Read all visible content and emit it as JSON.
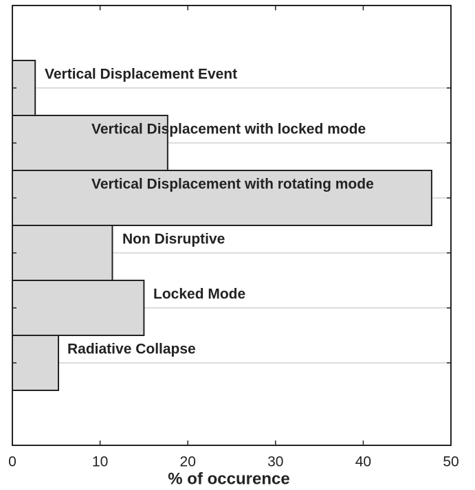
{
  "chart_data": {
    "type": "bar",
    "orientation": "horizontal",
    "categories": [
      "Vertical Displacement Event",
      "Vertical Displacement with locked mode",
      "Vertical Displacement with rotating mode",
      "Non Disruptive",
      "Locked Mode",
      "Radiative Collapse"
    ],
    "values": [
      2.6,
      17.7,
      47.8,
      11.4,
      15.0,
      5.25
    ],
    "color": "#d9d9d9",
    "xlabel": "% of occurence",
    "xlim": [
      0,
      50
    ],
    "xticks": [
      0,
      10,
      20,
      30,
      40,
      50
    ],
    "grid": true
  }
}
